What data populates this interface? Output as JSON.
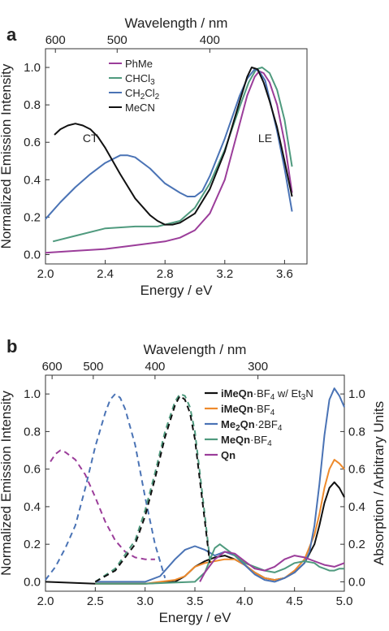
{
  "chart_data": [
    {
      "panel": "a",
      "type": "line",
      "xlabel": "Energy / eV",
      "ylabel": "Normalized Emission Intensity",
      "top_xlabel": "Wavelength / nm",
      "xlim": [
        2.0,
        3.75
      ],
      "ylim": [
        -0.05,
        1.1
      ],
      "xticks": [
        2.0,
        2.4,
        2.8,
        3.2,
        3.6
      ],
      "xtick_labels": [
        "2.0",
        "2.4",
        "2.8",
        "3.2",
        "3.6"
      ],
      "yticks": [
        0.0,
        0.2,
        0.4,
        0.6,
        0.8,
        1.0
      ],
      "ytick_labels": [
        "0.0",
        "0.2",
        "0.4",
        "0.6",
        "0.8",
        "1.0"
      ],
      "top_ticks_nm": [
        600,
        500,
        400
      ],
      "top_tick_labels": [
        "600",
        "500",
        "400"
      ],
      "grid": false,
      "legend_position": "top-left",
      "annotations": [
        {
          "text": "CT",
          "x": 2.3,
          "y": 0.6
        },
        {
          "text": "LE",
          "x": 3.47,
          "y": 0.6
        }
      ],
      "series": [
        {
          "name": "PhMe",
          "color": "#9b3d9a",
          "style": "solid",
          "x": [
            2.0,
            2.2,
            2.4,
            2.6,
            2.8,
            2.9,
            3.0,
            3.1,
            3.2,
            3.3,
            3.35,
            3.4,
            3.43,
            3.46,
            3.5,
            3.55,
            3.6,
            3.65
          ],
          "y": [
            0.01,
            0.02,
            0.03,
            0.05,
            0.07,
            0.09,
            0.13,
            0.22,
            0.4,
            0.7,
            0.85,
            0.95,
            0.98,
            0.97,
            0.92,
            0.8,
            0.6,
            0.33
          ]
        },
        {
          "name": "CHCl3",
          "color": "#4f9a7e",
          "style": "solid",
          "x": [
            2.05,
            2.2,
            2.4,
            2.6,
            2.75,
            2.9,
            3.0,
            3.1,
            3.2,
            3.3,
            3.36,
            3.41,
            3.45,
            3.5,
            3.55,
            3.6,
            3.65
          ],
          "y": [
            0.07,
            0.1,
            0.14,
            0.15,
            0.15,
            0.18,
            0.25,
            0.38,
            0.56,
            0.79,
            0.92,
            0.99,
            1.0,
            0.97,
            0.88,
            0.72,
            0.47
          ]
        },
        {
          "name": "CH2Cl2",
          "color": "#4a73b5",
          "style": "solid",
          "x": [
            2.0,
            2.1,
            2.2,
            2.3,
            2.4,
            2.5,
            2.55,
            2.6,
            2.7,
            2.8,
            2.9,
            2.95,
            3.0,
            3.05,
            3.1,
            3.2,
            3.3,
            3.35,
            3.4,
            3.43,
            3.47,
            3.5,
            3.55,
            3.6,
            3.65
          ],
          "y": [
            0.19,
            0.28,
            0.36,
            0.43,
            0.49,
            0.53,
            0.53,
            0.52,
            0.46,
            0.38,
            0.33,
            0.31,
            0.31,
            0.34,
            0.42,
            0.62,
            0.85,
            0.94,
            0.99,
            0.98,
            0.93,
            0.83,
            0.66,
            0.46,
            0.23
          ]
        },
        {
          "name": "MeCN",
          "color": "#111111",
          "style": "solid",
          "x": [
            2.06,
            2.1,
            2.15,
            2.2,
            2.25,
            2.3,
            2.35,
            2.4,
            2.5,
            2.6,
            2.7,
            2.75,
            2.8,
            2.85,
            2.9,
            3.0,
            3.1,
            3.2,
            3.3,
            3.35,
            3.38,
            3.42,
            3.46,
            3.5,
            3.55,
            3.6,
            3.65
          ],
          "y": [
            0.64,
            0.67,
            0.69,
            0.7,
            0.69,
            0.67,
            0.63,
            0.57,
            0.43,
            0.3,
            0.21,
            0.18,
            0.16,
            0.16,
            0.17,
            0.22,
            0.35,
            0.55,
            0.82,
            0.95,
            1.0,
            0.99,
            0.92,
            0.82,
            0.68,
            0.5,
            0.31
          ]
        }
      ]
    },
    {
      "panel": "b",
      "type": "line",
      "xlabel": "Energy / eV",
      "ylabel": "Normalized Emission Intensity",
      "y2label": "Absorption / Arbitrary Units",
      "top_xlabel": "Wavelength / nm",
      "xlim": [
        2.0,
        5.0
      ],
      "ylim": [
        -0.05,
        1.1
      ],
      "xticks": [
        2.0,
        2.5,
        3.0,
        3.5,
        4.0,
        4.5,
        5.0
      ],
      "xtick_labels": [
        "2.0",
        "2.5",
        "3.0",
        "3.5",
        "4.0",
        "4.5",
        "5.0"
      ],
      "yticks": [
        0.0,
        0.2,
        0.4,
        0.6,
        0.8,
        1.0
      ],
      "ytick_labels": [
        "0.0",
        "0.2",
        "0.4",
        "0.6",
        "0.8",
        "1.0"
      ],
      "y2ticks": [
        0.0,
        0.2,
        0.4,
        0.6,
        0.8,
        1.0
      ],
      "y2tick_labels": [
        "0.0",
        "0.2",
        "0.4",
        "0.6",
        "0.8",
        "1.0"
      ],
      "top_ticks_nm": [
        600,
        500,
        400,
        300
      ],
      "top_tick_labels": [
        "600",
        "500",
        "400",
        "300"
      ],
      "grid": false,
      "legend_position": "top-right",
      "series": [
        {
          "name": "iMeQn·BF4 w/ Et3N",
          "color": "#111111",
          "style": "solid",
          "x": [
            2.0,
            2.5,
            3.0,
            3.3,
            3.4,
            3.5,
            3.6,
            3.7,
            3.8,
            3.9,
            4.0,
            4.1,
            4.2,
            4.3,
            4.4,
            4.5,
            4.6,
            4.7,
            4.75,
            4.8,
            4.85,
            4.9,
            4.95,
            5.0
          ],
          "y": [
            0.0,
            -0.01,
            -0.01,
            0.0,
            0.03,
            0.08,
            0.11,
            0.13,
            0.14,
            0.12,
            0.09,
            0.05,
            0.02,
            0.01,
            0.02,
            0.05,
            0.1,
            0.2,
            0.3,
            0.42,
            0.5,
            0.53,
            0.5,
            0.45
          ]
        },
        {
          "name": "iMeQn·BF4",
          "color": "#ee8a2c",
          "style": "solid",
          "x": [
            2.5,
            3.0,
            3.3,
            3.4,
            3.5,
            3.6,
            3.7,
            3.8,
            3.9,
            4.0,
            4.1,
            4.2,
            4.3,
            4.4,
            4.5,
            4.6,
            4.7,
            4.75,
            4.8,
            4.85,
            4.9,
            4.95,
            5.0
          ],
          "y": [
            -0.01,
            -0.01,
            0.01,
            0.03,
            0.08,
            0.1,
            0.11,
            0.12,
            0.12,
            0.09,
            0.05,
            0.02,
            0.01,
            0.02,
            0.06,
            0.12,
            0.25,
            0.36,
            0.5,
            0.6,
            0.65,
            0.63,
            0.6
          ]
        },
        {
          "name": "Me2Qn·2BF4",
          "color": "#4a73b5",
          "style": "solid",
          "x": [
            2.5,
            3.0,
            3.15,
            3.3,
            3.4,
            3.5,
            3.6,
            3.7,
            3.8,
            3.9,
            4.0,
            4.1,
            4.2,
            4.3,
            4.4,
            4.5,
            4.6,
            4.65,
            4.7,
            4.75,
            4.8,
            4.85,
            4.9,
            4.95,
            5.0
          ],
          "y": [
            0.0,
            0.0,
            0.03,
            0.12,
            0.17,
            0.19,
            0.17,
            0.14,
            0.16,
            0.14,
            0.09,
            0.04,
            0.01,
            0.0,
            0.02,
            0.05,
            0.1,
            0.16,
            0.3,
            0.52,
            0.78,
            0.97,
            1.03,
            0.99,
            0.93
          ]
        },
        {
          "name": "MeQn·BF4",
          "color": "#4f9a7e",
          "style": "solid",
          "x": [
            2.5,
            3.0,
            3.5,
            3.6,
            3.7,
            3.75,
            3.8,
            3.9,
            4.0,
            4.1,
            4.2,
            4.3,
            4.4,
            4.5,
            4.6,
            4.7,
            4.75,
            4.8,
            4.85,
            4.9,
            4.95,
            5.0
          ],
          "y": [
            -0.01,
            -0.01,
            0.0,
            0.05,
            0.18,
            0.2,
            0.18,
            0.14,
            0.1,
            0.08,
            0.06,
            0.05,
            0.07,
            0.1,
            0.11,
            0.1,
            0.08,
            0.07,
            0.06,
            0.06,
            0.07,
            0.07
          ]
        },
        {
          "name": "Qn",
          "color": "#9b3d9a",
          "style": "solid",
          "x": [
            3.55,
            3.6,
            3.7,
            3.8,
            3.9,
            4.0,
            4.1,
            4.2,
            4.3,
            4.4,
            4.5,
            4.6,
            4.7,
            4.8,
            4.9,
            5.0
          ],
          "y": [
            0.0,
            0.05,
            0.12,
            0.16,
            0.15,
            0.11,
            0.07,
            0.06,
            0.08,
            0.12,
            0.14,
            0.13,
            0.11,
            0.09,
            0.08,
            0.1
          ]
        },
        {
          "name": "",
          "color": "#9b3d9a",
          "style": "dashed",
          "x": [
            2.05,
            2.1,
            2.15,
            2.2,
            2.3,
            2.4,
            2.5,
            2.6,
            2.7,
            2.8,
            2.9,
            3.0,
            3.1
          ],
          "y": [
            0.64,
            0.68,
            0.7,
            0.69,
            0.65,
            0.57,
            0.45,
            0.32,
            0.22,
            0.16,
            0.13,
            0.12,
            0.12
          ]
        },
        {
          "name": "",
          "color": "#4a73b5",
          "style": "dashed",
          "x": [
            2.0,
            2.1,
            2.2,
            2.3,
            2.4,
            2.5,
            2.6,
            2.65,
            2.7,
            2.75,
            2.8,
            2.9,
            3.0,
            3.1,
            3.2
          ],
          "y": [
            0.01,
            0.08,
            0.18,
            0.3,
            0.5,
            0.72,
            0.9,
            0.97,
            1.0,
            0.98,
            0.92,
            0.73,
            0.45,
            0.2,
            0.02
          ]
        },
        {
          "name": "",
          "color": "#4f9a7e",
          "style": "dashed",
          "x": [
            2.5,
            2.7,
            2.9,
            3.0,
            3.1,
            3.2,
            3.3,
            3.35,
            3.4,
            3.45,
            3.5,
            3.55,
            3.6,
            3.65
          ],
          "y": [
            0.0,
            0.07,
            0.22,
            0.38,
            0.58,
            0.8,
            0.96,
            1.0,
            0.99,
            0.93,
            0.8,
            0.58,
            0.35,
            0.12
          ]
        },
        {
          "name": "",
          "color": "#111111",
          "style": "dashed",
          "x": [
            2.5,
            2.7,
            2.9,
            3.0,
            3.1,
            3.2,
            3.3,
            3.35,
            3.4,
            3.45,
            3.5,
            3.55,
            3.6,
            3.65
          ],
          "y": [
            0.0,
            0.06,
            0.2,
            0.35,
            0.55,
            0.77,
            0.94,
            0.99,
            0.97,
            0.9,
            0.76,
            0.54,
            0.32,
            0.1
          ]
        }
      ],
      "legend_entries": [
        {
          "color": "#111111",
          "parts": [
            {
              "t": "iMeQn",
              "b": true
            },
            {
              "t": "·BF"
            },
            {
              "t": "4",
              "sub": true
            },
            {
              "t": " w/ Et"
            },
            {
              "t": "3",
              "sub": true
            },
            {
              "t": "N"
            }
          ]
        },
        {
          "color": "#ee8a2c",
          "parts": [
            {
              "t": "iMeQn",
              "b": true
            },
            {
              "t": "·BF"
            },
            {
              "t": "4",
              "sub": true
            }
          ]
        },
        {
          "color": "#4a73b5",
          "parts": [
            {
              "t": "Me",
              "b": true
            },
            {
              "t": "2",
              "b": true,
              "sub": true
            },
            {
              "t": "Qn",
              "b": true
            },
            {
              "t": "·2BF"
            },
            {
              "t": "4",
              "sub": true
            }
          ]
        },
        {
          "color": "#4f9a7e",
          "parts": [
            {
              "t": "MeQn",
              "b": true
            },
            {
              "t": "·BF"
            },
            {
              "t": "4",
              "sub": true
            }
          ]
        },
        {
          "color": "#9b3d9a",
          "parts": [
            {
              "t": "Qn",
              "b": true
            }
          ]
        }
      ]
    }
  ],
  "panel_a_legend": [
    {
      "color": "#9b3d9a",
      "parts": [
        {
          "t": "PhMe"
        }
      ]
    },
    {
      "color": "#4f9a7e",
      "parts": [
        {
          "t": "CHCl"
        },
        {
          "t": "3",
          "sub": true
        }
      ]
    },
    {
      "color": "#4a73b5",
      "parts": [
        {
          "t": "CH"
        },
        {
          "t": "2",
          "sub": true
        },
        {
          "t": "Cl"
        },
        {
          "t": "2",
          "sub": true
        }
      ]
    },
    {
      "color": "#111111",
      "parts": [
        {
          "t": "MeCN"
        }
      ]
    }
  ]
}
